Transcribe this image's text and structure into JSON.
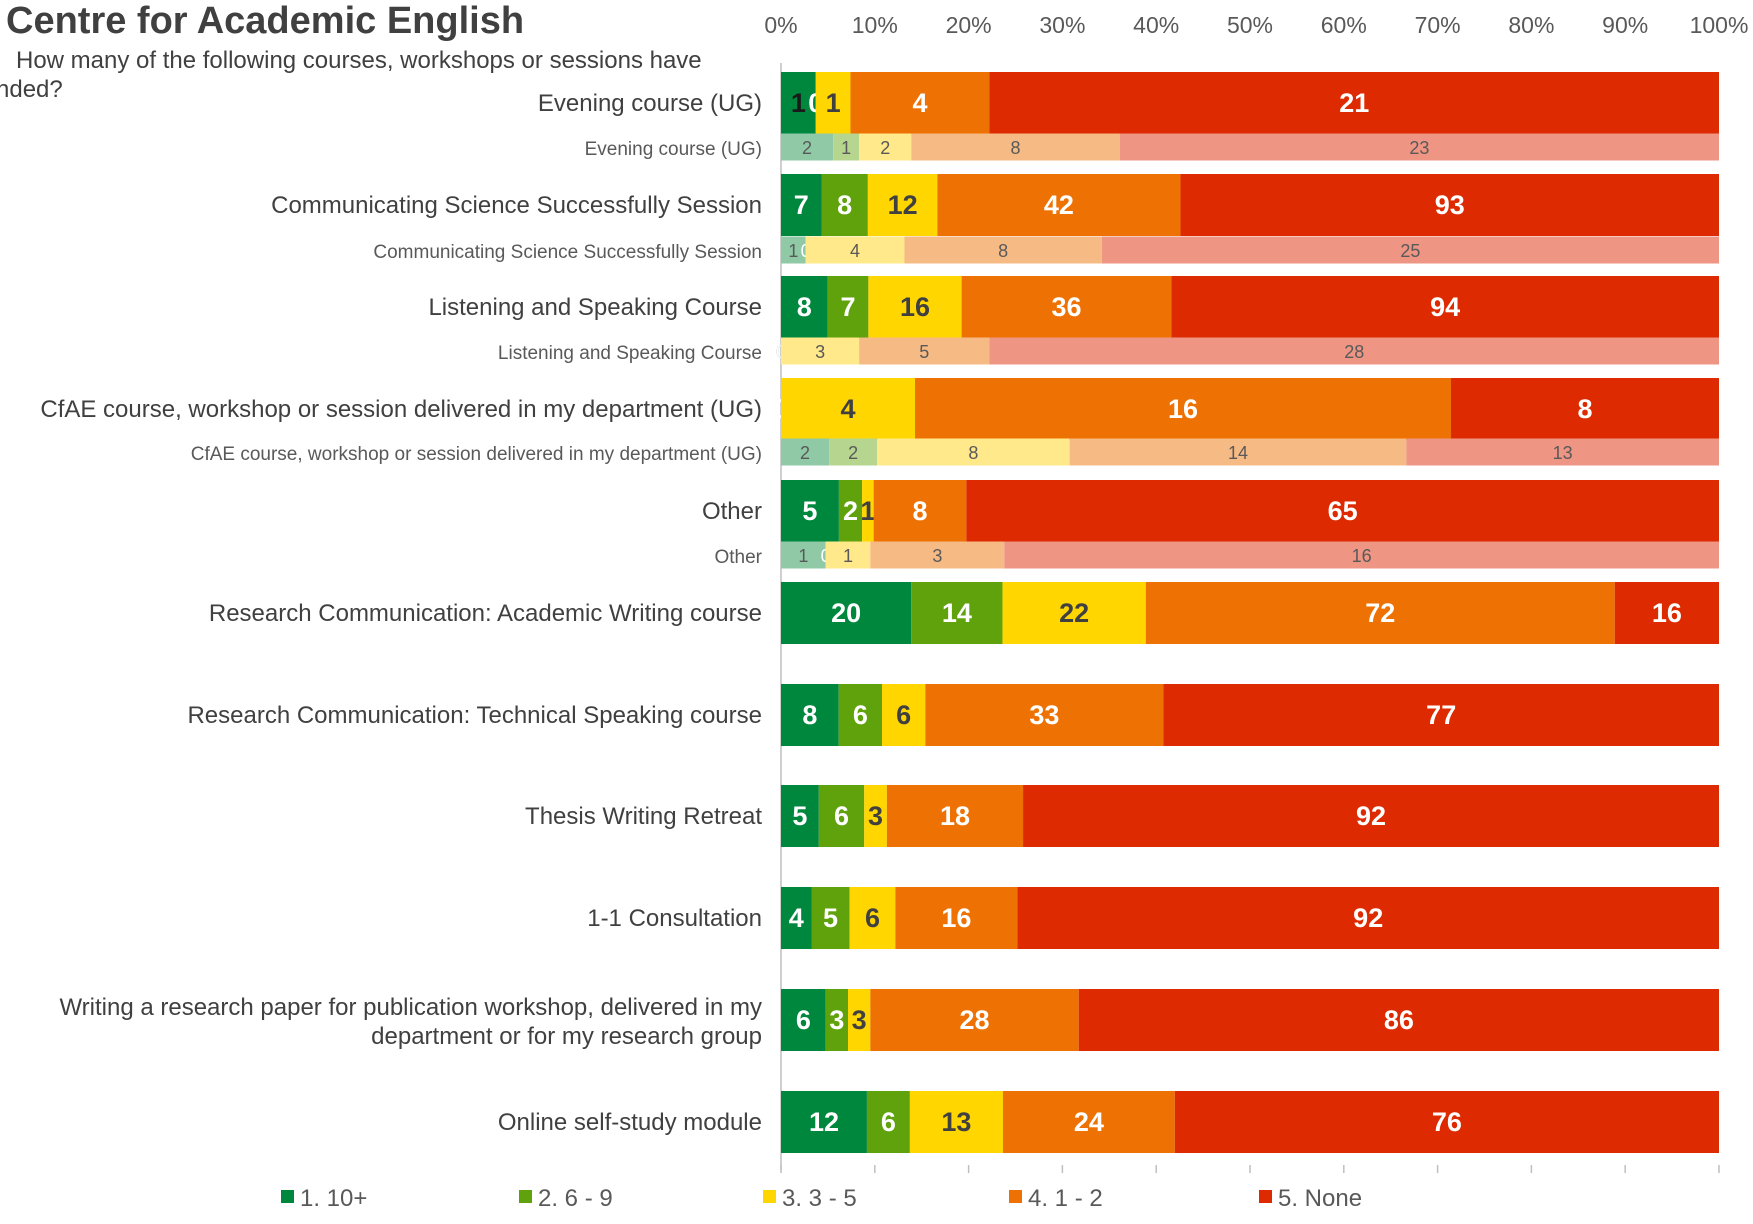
{
  "title": "Centre for Academic English",
  "subtitle_lines": [
    "How many of the following courses, workshops or sessions have",
    "nded?"
  ],
  "legend_colors": [
    "#00873E",
    "#5FA20C",
    "#FFD600",
    "#EE7203",
    "#DE2A00"
  ],
  "faded_colors": [
    "#8FC9A6",
    "#B6D68F",
    "#FFE98A",
    "#F6BB84",
    "#EE9584"
  ],
  "chart_data": {
    "type": "bar",
    "orientation": "horizontal",
    "stacked": "percent",
    "x_tick_labels": [
      "0%",
      "10%",
      "20%",
      "30%",
      "40%",
      "50%",
      "60%",
      "70%",
      "80%",
      "90%",
      "100%"
    ],
    "xlim": [
      0,
      100
    ],
    "legend_position": "bottom",
    "series_names": [
      "1. 10+",
      "2. 6 - 9",
      "3. 3 - 5",
      "4. 1 - 2",
      "5. None"
    ],
    "rows": [
      {
        "label": "Evening course (UG)",
        "style": "main",
        "values": [
          1,
          0,
          1,
          4,
          21
        ]
      },
      {
        "label": "Evening course (UG)",
        "style": "faded",
        "values": [
          2,
          1,
          2,
          8,
          23
        ]
      },
      {
        "label": "Communicating Science Successfully Session",
        "style": "main",
        "values": [
          7,
          8,
          12,
          42,
          93
        ]
      },
      {
        "label": "Communicating Science Successfully Session",
        "style": "faded",
        "values": [
          1,
          0,
          4,
          8,
          25
        ]
      },
      {
        "label": "Listening and Speaking Course",
        "style": "main",
        "values": [
          8,
          7,
          16,
          36,
          94
        ]
      },
      {
        "label": "Listening and Speaking Course",
        "style": "faded",
        "values": [
          0,
          0,
          3,
          5,
          28
        ]
      },
      {
        "label": "CfAE course, workshop or session delivered in my department (UG)",
        "style": "main",
        "values": [
          0,
          0,
          4,
          16,
          8
        ]
      },
      {
        "label": "CfAE course, workshop or session delivered in my department (UG)",
        "style": "faded",
        "values": [
          2,
          2,
          8,
          14,
          13
        ]
      },
      {
        "label": "Other",
        "style": "main",
        "values": [
          5,
          2,
          1,
          8,
          65
        ]
      },
      {
        "label": "Other",
        "style": "faded",
        "values": [
          1,
          0,
          1,
          3,
          16
        ]
      },
      {
        "label": "Research Communication: Academic Writing course",
        "style": "main",
        "values": [
          20,
          14,
          22,
          72,
          16
        ]
      },
      {
        "label": "Research Communication: Technical Speaking course",
        "style": "main",
        "values": [
          8,
          6,
          6,
          33,
          77
        ]
      },
      {
        "label": "Thesis Writing Retreat",
        "style": "main",
        "values": [
          5,
          6,
          3,
          18,
          92
        ]
      },
      {
        "label": "1-1 Consultation",
        "style": "main",
        "values": [
          4,
          5,
          6,
          16,
          92
        ]
      },
      {
        "label": "Writing a research paper for publication workshop, delivered in my department or for my research group",
        "label_lines": [
          "Writing a research paper for publication workshop, delivered in my",
          "department or for my research group"
        ],
        "style": "main",
        "values": [
          6,
          3,
          3,
          28,
          86
        ]
      },
      {
        "label": "Online self-study module",
        "style": "main",
        "values": [
          12,
          6,
          13,
          24,
          76
        ]
      }
    ]
  }
}
